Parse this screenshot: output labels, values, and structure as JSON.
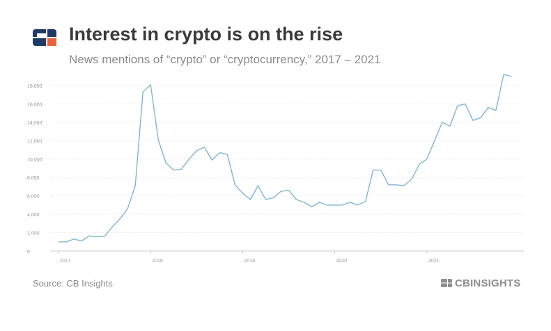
{
  "header": {
    "title": "Interest in crypto is on the rise",
    "subtitle": "News mentions of “crypto” or “cryptocurrency,” 2017 – 2021",
    "logo_colors": {
      "navy": "#1f3b63",
      "orange": "#e8643a"
    }
  },
  "footer": {
    "source": "Source: CB Insights",
    "brand": "CBINSIGHTS"
  },
  "colors": {
    "line": "#7fb6d4",
    "grid": "#ececec",
    "axis": "#cccccc",
    "tick_text": "#999999"
  },
  "chart_data": {
    "type": "line",
    "title": "Interest in crypto is on the rise",
    "subtitle": "News mentions of “crypto” or “cryptocurrency,” 2017 – 2021",
    "xlabel": "",
    "ylabel": "",
    "ylim": [
      0,
      18000
    ],
    "yticks": [
      0,
      2000,
      4000,
      6000,
      8000,
      10000,
      12000,
      14000,
      16000,
      18000
    ],
    "ytick_labels": [
      "0",
      "2,000",
      "4,000",
      "6,000",
      "8,000",
      "10,000",
      "12,000",
      "14,000",
      "16,000",
      "18,000"
    ],
    "xticks": [
      {
        "label": "2017",
        "index": 0
      },
      {
        "label": "2018",
        "index": 12
      },
      {
        "label": "2019",
        "index": 24
      },
      {
        "label": "2020",
        "index": 36
      },
      {
        "label": "2021",
        "index": 48
      }
    ],
    "grid": true,
    "legend": "none",
    "series": [
      {
        "x": [
          "2017-01",
          "2017-02",
          "2017-03",
          "2017-04",
          "2017-05",
          "2017-06",
          "2017-07",
          "2017-08",
          "2017-09",
          "2017-10",
          "2017-11",
          "2017-12",
          "2018-01",
          "2018-02",
          "2018-03",
          "2018-04",
          "2018-05",
          "2018-06",
          "2018-07",
          "2018-08",
          "2018-09",
          "2018-10",
          "2018-11",
          "2018-12",
          "2019-01",
          "2019-02",
          "2019-03",
          "2019-04",
          "2019-05",
          "2019-06",
          "2019-07",
          "2019-08",
          "2019-09",
          "2019-10",
          "2019-11",
          "2019-12",
          "2020-01",
          "2020-02",
          "2020-03",
          "2020-04",
          "2020-05",
          "2020-06",
          "2020-07",
          "2020-08",
          "2020-09",
          "2020-10",
          "2020-11",
          "2020-12",
          "2021-01",
          "2021-02",
          "2021-03",
          "2021-04",
          "2021-05",
          "2021-06",
          "2021-07",
          "2021-08",
          "2021-09",
          "2021-10",
          "2021-11",
          "2021-12"
        ],
        "values": [
          1000,
          1000,
          1300,
          1100,
          1650,
          1550,
          1600,
          2600,
          3500,
          4600,
          7100,
          17300,
          18100,
          12100,
          9600,
          8800,
          8900,
          10000,
          10900,
          11300,
          9900,
          10700,
          10500,
          7200,
          6300,
          5600,
          7100,
          5600,
          5800,
          6500,
          6600,
          5600,
          5300,
          4800,
          5300,
          5000,
          5000,
          5000,
          5300,
          5000,
          5400,
          8800,
          8800,
          7200,
          7200,
          7100,
          7800,
          9400,
          10000,
          12000,
          14000,
          13600,
          15800,
          16000,
          14200,
          14500,
          15600,
          15300,
          19200,
          19000
        ]
      }
    ]
  }
}
